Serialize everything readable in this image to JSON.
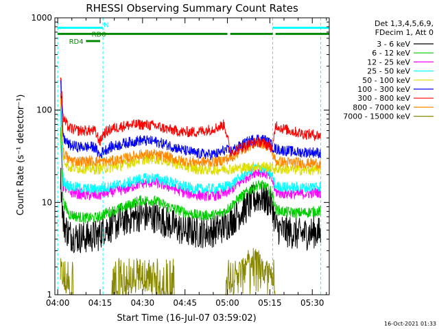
{
  "chart_data": {
    "type": "line",
    "title": "RHESSI Observing Summary Count Rates",
    "xlabel": "Start Time (16-Jul-07 03:59:02)",
    "ylabel": "Count Rate (s⁻¹ detector⁻¹)",
    "yscale": "log",
    "ylim": [
      1,
      1000
    ],
    "xlim_min": [
      0,
      97
    ],
    "x_tick_labels": [
      "04:00",
      "04:15",
      "04:30",
      "04:45",
      "05:00",
      "05:15",
      "05:30"
    ],
    "x_tick_minutes": [
      1,
      16,
      31,
      46,
      61,
      76,
      91
    ],
    "y_tick_labels": [
      "1",
      "10",
      "100",
      "1000"
    ],
    "y_tick_values": [
      1,
      10,
      100,
      1000
    ],
    "info_lines": [
      "Det 1,3,4,5,6,9,",
      "FDecim 1, Att 0"
    ],
    "legend_position": "right",
    "flags": [
      {
        "label": "N",
        "color": "#00ffff",
        "segments": [
          [
            1,
            17
          ],
          [
            77,
            97
          ]
        ],
        "level": 780
      },
      {
        "label": "RD0",
        "color": "#008800",
        "segments": [
          [
            1,
            61
          ],
          [
            62,
            77
          ],
          [
            78,
            97
          ]
        ],
        "level": 670
      },
      {
        "label": "RD4",
        "color": "#008800",
        "segments": [
          [
            11,
            16
          ]
        ],
        "level": 560
      }
    ],
    "vlines_minutes": [
      1,
      17,
      77,
      94
    ],
    "series": [
      {
        "name": "3 - 6 keV",
        "color": "#000000",
        "x": [
          2,
          3,
          5,
          8,
          11,
          14,
          16,
          17,
          20,
          25,
          30,
          35,
          40,
          45,
          50,
          55,
          58,
          60,
          62,
          65,
          68,
          70,
          72,
          74,
          76,
          77,
          78,
          80,
          83,
          86,
          89,
          92,
          94
        ],
        "y": [
          20,
          6,
          4.5,
          4.2,
          4.2,
          4.3,
          4.5,
          5.2,
          5.5,
          6.5,
          7.2,
          7,
          6,
          5,
          4.8,
          4.8,
          5.2,
          5.5,
          6.2,
          7.5,
          9,
          10.5,
          11.5,
          11,
          10,
          9,
          5.5,
          5,
          4.8,
          4.5,
          4.6,
          4.8,
          4.6
        ]
      },
      {
        "name": "6 - 12 keV",
        "color": "#00cc00",
        "x": [
          2,
          3,
          5,
          8,
          11,
          14,
          16,
          17,
          20,
          25,
          30,
          35,
          40,
          45,
          50,
          55,
          58,
          60,
          62,
          65,
          68,
          70,
          72,
          74,
          76,
          77,
          78,
          80,
          83,
          86,
          89,
          92,
          94
        ],
        "y": [
          60,
          10,
          7.5,
          7,
          6.8,
          6.8,
          7,
          7.5,
          8,
          9,
          10.5,
          10.5,
          9,
          8,
          7.3,
          7.2,
          7.5,
          8,
          9,
          11,
          13,
          14.5,
          15.5,
          15,
          13.5,
          12,
          8.5,
          8,
          7.8,
          7.7,
          7.8,
          8,
          8
        ]
      },
      {
        "name": "12 - 25 keV",
        "color": "#ff00ff",
        "x": [
          2,
          3,
          5,
          8,
          11,
          14,
          16,
          17,
          20,
          25,
          30,
          35,
          40,
          45,
          50,
          55,
          58,
          60,
          62,
          65,
          68,
          70,
          72,
          74,
          76,
          77,
          78,
          80,
          83,
          86,
          89,
          92,
          94
        ],
        "y": [
          100,
          15,
          13,
          12.5,
          12,
          12,
          12,
          12.5,
          13,
          14,
          16,
          16.5,
          15,
          13,
          12,
          11.8,
          12,
          12.5,
          13.5,
          16,
          19,
          21,
          21.5,
          21,
          19,
          17,
          13,
          12.5,
          12.5,
          12.3,
          12.5,
          12.8,
          12.8
        ]
      },
      {
        "name": "25 - 50 keV",
        "color": "#00ffff",
        "x": [
          2,
          3,
          5,
          8,
          11,
          14,
          16,
          17,
          20,
          25,
          30,
          35,
          40,
          45,
          50,
          55,
          58,
          60,
          62,
          65,
          68,
          70,
          72,
          74,
          76,
          77,
          78,
          80,
          83,
          86,
          89,
          92,
          94
        ],
        "y": [
          100,
          17,
          15,
          14.5,
          14,
          14,
          14,
          14.5,
          15,
          16,
          18,
          18.5,
          17,
          15,
          14,
          14,
          14.2,
          14.8,
          15.5,
          18,
          21,
          23,
          24,
          23,
          21,
          19,
          15,
          14.8,
          14.5,
          14.5,
          14.5,
          15,
          15
        ]
      },
      {
        "name": "50 - 100 keV",
        "color": "#dddd00",
        "x": [
          2,
          3,
          5,
          8,
          11,
          14,
          16,
          17,
          20,
          25,
          30,
          35,
          40,
          45,
          50,
          55,
          58,
          60,
          62,
          65,
          68,
          70,
          72,
          74,
          76,
          77,
          78,
          80,
          83,
          86,
          89,
          92,
          94
        ],
        "y": [
          130,
          30,
          24,
          23.5,
          23.5,
          23,
          23,
          23.5,
          24,
          26,
          29,
          30,
          28,
          25,
          23,
          22.5,
          22.8,
          23.2,
          23,
          23.5,
          24,
          24.5,
          24.5,
          24.5,
          24,
          23.5,
          23,
          23,
          23,
          22.5,
          22.5,
          22.5,
          22.5
        ]
      },
      {
        "name": "100 - 300 keV",
        "color": "#0000ff",
        "x": [
          2,
          3,
          5,
          8,
          11,
          14,
          16,
          17,
          20,
          25,
          30,
          35,
          40,
          45,
          50,
          55,
          58,
          60,
          62,
          65,
          68,
          70,
          72,
          74,
          76,
          77,
          78,
          80,
          83,
          86,
          89,
          92,
          94
        ],
        "y": [
          200,
          50,
          42,
          40,
          40,
          40,
          32,
          36,
          40,
          44,
          47,
          46,
          42,
          37,
          34,
          33,
          34,
          37,
          36,
          40,
          45,
          48,
          49,
          48,
          44,
          40,
          38,
          37,
          36,
          35,
          35,
          35,
          34
        ]
      },
      {
        "name": "300 - 800 keV",
        "color": "#ff0000",
        "x": [
          2,
          3,
          5,
          8,
          11,
          14,
          16,
          17,
          20,
          25,
          30,
          35,
          40,
          45,
          50,
          55,
          58,
          60,
          62,
          65,
          68,
          70,
          72,
          74,
          76,
          77,
          78,
          80,
          83,
          86,
          89,
          92,
          94
        ],
        "y": [
          250,
          80,
          64,
          60,
          60,
          60,
          45,
          55,
          63,
          68,
          70,
          68,
          62,
          58,
          58,
          62,
          66,
          70,
          35,
          38,
          42,
          44,
          45,
          44,
          41,
          38,
          70,
          64,
          60,
          57,
          55,
          54,
          53
        ]
      },
      {
        "name": "800 - 7000 keV",
        "color": "#ff8800",
        "x": [
          2,
          3,
          5,
          8,
          11,
          14,
          16,
          17,
          20,
          25,
          30,
          35,
          40,
          45,
          50,
          55,
          58,
          60,
          62,
          65,
          68,
          70,
          72,
          74,
          76,
          77,
          78,
          80,
          83,
          86,
          89,
          92,
          94
        ],
        "y": [
          150,
          35,
          29,
          28,
          28,
          28,
          28,
          27.5,
          28,
          30,
          33,
          33,
          31,
          28,
          27.5,
          27.5,
          28,
          29,
          30,
          35,
          40,
          43,
          45,
          43,
          39,
          35,
          28,
          27.5,
          27,
          27,
          26.5,
          26.5,
          26
        ]
      },
      {
        "name": "7000 - 15000 keV",
        "color": "#888800",
        "x": [
          2,
          3,
          5,
          8,
          11,
          14,
          16,
          17,
          20,
          25,
          30,
          35,
          40,
          45,
          50,
          55,
          58,
          60,
          62,
          65,
          68,
          70,
          72,
          74,
          76,
          77,
          78,
          80,
          83,
          86,
          89,
          92,
          94
        ],
        "y": [
          3,
          1.5,
          1.1,
          1,
          1,
          1,
          1,
          1,
          1.05,
          1.3,
          1.6,
          1.4,
          1.1,
          1,
          1,
          1,
          1,
          1,
          1.5,
          2.2,
          3,
          3.3,
          3.4,
          3,
          2.2,
          1.6,
          1,
          1,
          1,
          1,
          1,
          1,
          1
        ]
      }
    ]
  },
  "footer": {
    "timestamp": "16-Oct-2021 01:33"
  }
}
